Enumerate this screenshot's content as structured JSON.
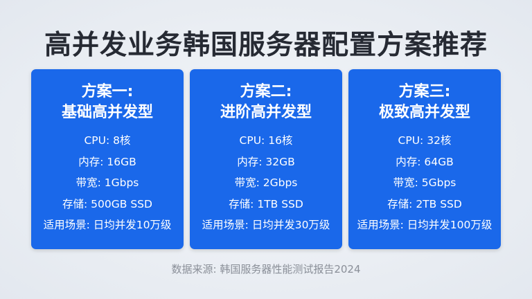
{
  "title": "高并发业务韩国服务器配置方案推荐",
  "plans": [
    {
      "name": "方案一:",
      "type": "基础高并发型",
      "rows": [
        "CPU: 8核",
        "内存: 16GB",
        "带宽: 1Gbps",
        "存储: 500GB SSD",
        "适用场景: 日均并发10万级"
      ]
    },
    {
      "name": "方案二:",
      "type": "进阶高并发型",
      "rows": [
        "CPU: 16核",
        "内存: 32GB",
        "带宽: 2Gbps",
        "存储: 1TB SSD",
        "适用场景: 日均并发30万级"
      ]
    },
    {
      "name": "方案三:",
      "type": "极致高并发型",
      "rows": [
        "CPU: 32核",
        "内存: 64GB",
        "带宽: 5Gbps",
        "存储: 2TB SSD",
        "适用场景: 日均并发100万级"
      ]
    }
  ],
  "footer": "数据来源: 韩国服务器性能测试报告2024",
  "colors": {
    "card": "#1a68ea",
    "title": "#262a33"
  }
}
